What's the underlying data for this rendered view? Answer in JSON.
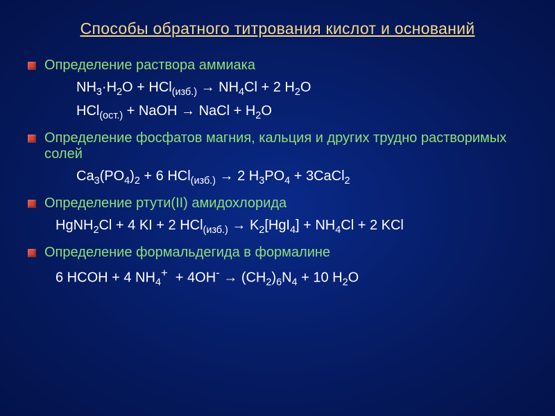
{
  "title": "Способы обратного титрования кислот и оснований",
  "colors": {
    "bullet": "#d8443a",
    "title": "#f5d98a",
    "heading": "#8fe07a",
    "formula": "#ffffff",
    "bg_center": "#0a2a8a",
    "bg_edge": "#03124a"
  },
  "font_sizes": {
    "title": 23,
    "heading": 20,
    "formula": 20
  },
  "sections": [
    {
      "heading": "Определение раствора аммиака",
      "formulas": [
        {
          "html": "NH<sub>3</sub>·H<sub>2</sub>O + HCl<sub>(изб.)</sub> → NH<sub>4</sub>Cl + 2 H<sub>2</sub>O",
          "indent": "normal"
        },
        {
          "html": "HCl<sub>(ост.)</sub> + NaOH → NaCl + H<sub>2</sub>O",
          "indent": "normal"
        }
      ]
    },
    {
      "heading": "Определение фосфатов магния, кальция и других трудно растворимых солей",
      "formulas": [
        {
          "html": "Ca<sub>3</sub>(PO<sub>4</sub>)<sub>2</sub> + 6 HCl<sub>(изб.)</sub> → 2 H<sub>3</sub>PO<sub>4</sub> + 3CaCl<sub>2</sub>",
          "indent": "normal"
        }
      ]
    },
    {
      "heading": "Определение ртути(II) амидохлорида",
      "formulas": [
        {
          "html": "HgNH<sub>2</sub>Cl + 4 KI + 2 HCl<sub>(изб.)</sub> → K<sub>2</sub>[HgI<sub>4</sub>] + NH<sub>4</sub>Cl + 2 KCl",
          "indent": "wide"
        }
      ]
    },
    {
      "heading": "Определение формальдегида в формалине",
      "formulas": [
        {
          "html": "6 HCOH + 4 NH<sub>4</sub><sup>+</sup> &nbsp;+ 4OH<sup>-</sup> → (CH<sub>2</sub>)<sub>6</sub>N<sub>4</sub> + 10 H<sub>2</sub>O",
          "indent": "wide"
        }
      ]
    }
  ]
}
